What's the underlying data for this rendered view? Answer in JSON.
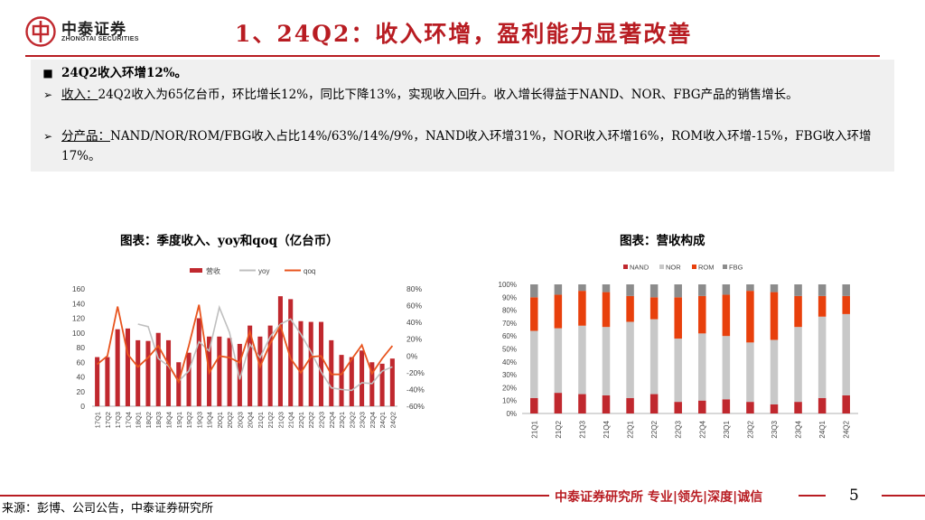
{
  "header": {
    "logo_cn": "中泰证券",
    "logo_en": "ZHONGTAI SECURITIES",
    "title": "1、24Q2：收入环增，盈利能力显著改善",
    "accent_color": "#b81c22"
  },
  "summary": {
    "headline": "24Q2收入环增12%。",
    "items": [
      {
        "label": "收入：",
        "text": "24Q2收入为65亿台币，环比增长12%，同比下降13%，实现收入回升。收入增长得益于NAND、NOR、FBG产品的销售增长。"
      },
      {
        "label": "分产品：",
        "text": "NAND/NOR/ROM/FBG收入占比14%/63%/14%/9%，NAND收入环增31%，NOR收入环增16%，ROM收入环增-15%，FBG收入环增17%。"
      }
    ]
  },
  "chart_data": [
    {
      "type": "bar",
      "title": "图表：季度收入、yoy和qoq（亿台币）",
      "legend": [
        "营收",
        "yoy",
        "qoq"
      ],
      "legend_position": "top",
      "categories": [
        "17Q1",
        "17Q2",
        "17Q3",
        "17Q4",
        "18Q1",
        "18Q2",
        "18Q3",
        "18Q4",
        "19Q1",
        "19Q2",
        "19Q3",
        "19Q4",
        "20Q1",
        "20Q2",
        "20Q3",
        "20Q4",
        "21Q1",
        "21Q2",
        "21Q3",
        "21Q4",
        "22Q1",
        "22Q2",
        "22Q3",
        "22Q4",
        "23Q1",
        "23Q2",
        "23Q3",
        "23Q4",
        "24Q1",
        "24Q2"
      ],
      "left_axis": {
        "ylim": [
          0,
          160
        ],
        "ticks": [
          "0",
          "20",
          "40",
          "60",
          "80",
          "100",
          "120",
          "140",
          "160"
        ]
      },
      "right_axis": {
        "ylim": [
          -60,
          80
        ],
        "ticks": [
          "-60%",
          "-40%",
          "-20%",
          "0%",
          "20%",
          "40%",
          "60%",
          "80%"
        ]
      },
      "series": [
        {
          "name": "营收",
          "type": "bar",
          "axis": "left",
          "color": "#c0282e",
          "values": [
            67,
            67,
            105,
            106,
            90,
            89,
            100,
            90,
            60,
            73,
            120,
            95,
            95,
            93,
            85,
            110,
            95,
            110,
            150,
            146,
            116,
            115,
            115,
            90,
            70,
            67,
            76,
            60,
            58,
            65
          ]
        },
        {
          "name": "yoy",
          "type": "line",
          "axis": "right",
          "color": "#bfbfbf",
          "values": [
            null,
            null,
            null,
            null,
            38,
            35,
            -3,
            -12,
            -30,
            -18,
            17,
            6,
            58,
            28,
            -28,
            14,
            -2,
            23,
            38,
            44,
            26,
            5,
            -19,
            -38,
            -40,
            -41,
            -32,
            -33,
            -18,
            -13
          ]
        },
        {
          "name": "qoq",
          "type": "line",
          "axis": "right",
          "color": "#e8541e",
          "values": [
            -10,
            0,
            59,
            2,
            -13,
            -2,
            12,
            -10,
            -31,
            12,
            61,
            -20,
            0,
            -2,
            -8,
            29,
            -13,
            15,
            36,
            -3,
            -20,
            -1,
            0,
            -22,
            -22,
            -4,
            13,
            -21,
            -3,
            12
          ]
        }
      ]
    },
    {
      "type": "bar",
      "stacked": true,
      "title": "图表：营收构成",
      "legend": [
        "NAND",
        "NOR",
        "ROM",
        "FBG"
      ],
      "legend_position": "top",
      "categories": [
        "21Q1",
        "21Q2",
        "21Q3",
        "21Q4",
        "22Q1",
        "22Q2",
        "22Q3",
        "22Q4",
        "23Q1",
        "23Q2",
        "23Q3",
        "23Q4",
        "24Q1",
        "24Q2"
      ],
      "ylim": [
        0,
        100
      ],
      "ticks": [
        "0%",
        "10%",
        "20%",
        "30%",
        "40%",
        "50%",
        "60%",
        "70%",
        "80%",
        "90%",
        "100%"
      ],
      "series": [
        {
          "name": "NAND",
          "color": "#c0282e",
          "values": [
            12,
            16,
            15,
            14,
            12,
            15,
            9,
            10,
            11,
            9,
            7,
            9,
            12,
            14
          ]
        },
        {
          "name": "NOR",
          "color": "#c8c8c8",
          "values": [
            52,
            50,
            53,
            53,
            59,
            58,
            49,
            52,
            49,
            46,
            50,
            58,
            63,
            63
          ]
        },
        {
          "name": "ROM",
          "color": "#e8400c",
          "values": [
            26,
            26,
            27,
            27,
            20,
            17,
            32,
            29,
            32,
            40,
            37,
            24,
            16,
            14
          ]
        },
        {
          "name": "FBG",
          "color": "#8c8c8c",
          "values": [
            10,
            8,
            5,
            6,
            9,
            10,
            10,
            9,
            8,
            5,
            6,
            9,
            9,
            9
          ]
        }
      ]
    }
  ],
  "footer": {
    "source": "来源：彭博、公司公告，中泰证券研究所",
    "brand": "中泰证券研究所 专业|领先|深度|诚信",
    "page": "5"
  }
}
